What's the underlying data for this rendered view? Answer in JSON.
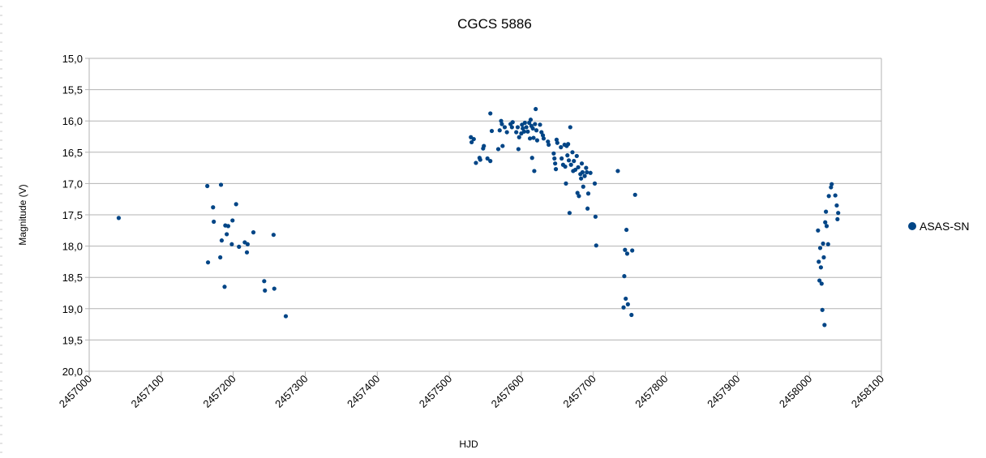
{
  "chart_data": {
    "type": "scatter",
    "title": "CGCS 5886",
    "xlabel": "HJD",
    "ylabel": "Magnitude (V)",
    "xlim": [
      2457000,
      2458100
    ],
    "ylim": [
      15.0,
      20.0
    ],
    "y_inverted": true,
    "grid": "horizontal",
    "legend_position": "right",
    "x_ticks": [
      "2457000",
      "2457100",
      "2457200",
      "2457300",
      "2457400",
      "2457500",
      "2457600",
      "2457700",
      "2457800",
      "2457900",
      "2458000",
      "2458100"
    ],
    "y_ticks": [
      "15,0",
      "15,5",
      "16,0",
      "16,5",
      "17,0",
      "17,5",
      "18,0",
      "18,5",
      "19,0",
      "19,5",
      "20,0"
    ],
    "series": [
      {
        "name": "ASAS-SN",
        "color": "#004586",
        "points": [
          [
            2457041,
            17.55
          ],
          [
            2457164,
            17.04
          ],
          [
            2457165,
            18.26
          ],
          [
            2457172,
            17.38
          ],
          [
            2457173,
            17.61
          ],
          [
            2457182,
            18.18
          ],
          [
            2457183,
            17.02
          ],
          [
            2457184,
            17.91
          ],
          [
            2457188,
            18.65
          ],
          [
            2457189,
            17.67
          ],
          [
            2457191,
            17.81
          ],
          [
            2457193,
            17.68
          ],
          [
            2457198,
            17.97
          ],
          [
            2457199,
            17.59
          ],
          [
            2457204,
            17.33
          ],
          [
            2457208,
            18.01
          ],
          [
            2457216,
            17.94
          ],
          [
            2457219,
            18.1
          ],
          [
            2457220,
            17.97
          ],
          [
            2457228,
            17.78
          ],
          [
            2457243,
            18.56
          ],
          [
            2457244,
            18.71
          ],
          [
            2457256,
            17.82
          ],
          [
            2457257,
            18.68
          ],
          [
            2457273,
            19.12
          ],
          [
            2457530,
            16.26
          ],
          [
            2457531,
            16.34
          ],
          [
            2457534,
            16.29
          ],
          [
            2457537,
            16.67
          ],
          [
            2457542,
            16.59
          ],
          [
            2457543,
            16.62
          ],
          [
            2457547,
            16.44
          ],
          [
            2457548,
            16.4
          ],
          [
            2457553,
            16.6
          ],
          [
            2457557,
            16.64
          ],
          [
            2457557,
            15.88
          ],
          [
            2457559,
            16.16
          ],
          [
            2457568,
            16.45
          ],
          [
            2457570,
            16.15
          ],
          [
            2457572,
            16.0
          ],
          [
            2457573,
            16.05
          ],
          [
            2457574,
            16.4
          ],
          [
            2457577,
            16.1
          ],
          [
            2457580,
            16.18
          ],
          [
            2457585,
            16.05
          ],
          [
            2457587,
            16.1
          ],
          [
            2457588,
            16.02
          ],
          [
            2457593,
            16.18
          ],
          [
            2457595,
            16.1
          ],
          [
            2457596,
            16.45
          ],
          [
            2457597,
            16.26
          ],
          [
            2457600,
            16.2
          ],
          [
            2457601,
            16.06
          ],
          [
            2457602,
            16.12
          ],
          [
            2457604,
            16.17
          ],
          [
            2457605,
            16.03
          ],
          [
            2457607,
            16.1
          ],
          [
            2457609,
            16.17
          ],
          [
            2457611,
            16.03
          ],
          [
            2457612,
            16.28
          ],
          [
            2457613,
            15.98
          ],
          [
            2457614,
            16.08
          ],
          [
            2457615,
            16.59
          ],
          [
            2457616,
            16.12
          ],
          [
            2457617,
            16.27
          ],
          [
            2457618,
            16.8
          ],
          [
            2457619,
            16.05
          ],
          [
            2457620,
            15.81
          ],
          [
            2457621,
            16.15
          ],
          [
            2457622,
            16.31
          ],
          [
            2457626,
            16.06
          ],
          [
            2457628,
            16.18
          ],
          [
            2457630,
            16.23
          ],
          [
            2457631,
            16.28
          ],
          [
            2457637,
            16.33
          ],
          [
            2457638,
            16.38
          ],
          [
            2457645,
            16.52
          ],
          [
            2457646,
            16.6
          ],
          [
            2457647,
            16.68
          ],
          [
            2457648,
            16.77
          ],
          [
            2457649,
            16.3
          ],
          [
            2457650,
            16.35
          ],
          [
            2457655,
            16.42
          ],
          [
            2457656,
            16.6
          ],
          [
            2457658,
            16.7
          ],
          [
            2457660,
            16.38
          ],
          [
            2457661,
            16.73
          ],
          [
            2457662,
            17.0
          ],
          [
            2457663,
            16.4
          ],
          [
            2457664,
            16.55
          ],
          [
            2457665,
            16.37
          ],
          [
            2457666,
            16.63
          ],
          [
            2457667,
            17.47
          ],
          [
            2457668,
            16.1
          ],
          [
            2457669,
            16.7
          ],
          [
            2457671,
            16.5
          ],
          [
            2457672,
            16.8
          ],
          [
            2457673,
            16.64
          ],
          [
            2457675,
            16.78
          ],
          [
            2457677,
            16.56
          ],
          [
            2457678,
            17.15
          ],
          [
            2457679,
            16.74
          ],
          [
            2457680,
            17.2
          ],
          [
            2457682,
            16.85
          ],
          [
            2457683,
            16.92
          ],
          [
            2457684,
            16.68
          ],
          [
            2457685,
            16.82
          ],
          [
            2457686,
            17.05
          ],
          [
            2457688,
            16.88
          ],
          [
            2457690,
            16.75
          ],
          [
            2457691,
            16.82
          ],
          [
            2457692,
            17.4
          ],
          [
            2457693,
            17.16
          ],
          [
            2457696,
            16.83
          ],
          [
            2457702,
            17.0
          ],
          [
            2457703,
            17.53
          ],
          [
            2457704,
            17.99
          ],
          [
            2457734,
            16.8
          ],
          [
            2457742,
            18.98
          ],
          [
            2457743,
            18.48
          ],
          [
            2457744,
            18.06
          ],
          [
            2457745,
            18.84
          ],
          [
            2457746,
            17.74
          ],
          [
            2457747,
            18.12
          ],
          [
            2457748,
            18.93
          ],
          [
            2457753,
            19.1
          ],
          [
            2457754,
            18.07
          ],
          [
            2457758,
            17.18
          ],
          [
            2458012,
            17.75
          ],
          [
            2458013,
            18.25
          ],
          [
            2458014,
            18.55
          ],
          [
            2458015,
            18.03
          ],
          [
            2458016,
            18.34
          ],
          [
            2458017,
            18.6
          ],
          [
            2458018,
            19.02
          ],
          [
            2458019,
            17.96
          ],
          [
            2458020,
            18.18
          ],
          [
            2458021,
            19.26
          ],
          [
            2458022,
            17.62
          ],
          [
            2458023,
            17.45
          ],
          [
            2458024,
            17.68
          ],
          [
            2458026,
            17.97
          ],
          [
            2458027,
            17.2
          ],
          [
            2458030,
            17.06
          ],
          [
            2458031,
            17.01
          ],
          [
            2458036,
            17.19
          ],
          [
            2458038,
            17.35
          ],
          [
            2458039,
            17.57
          ],
          [
            2458040,
            17.47
          ]
        ]
      }
    ]
  }
}
